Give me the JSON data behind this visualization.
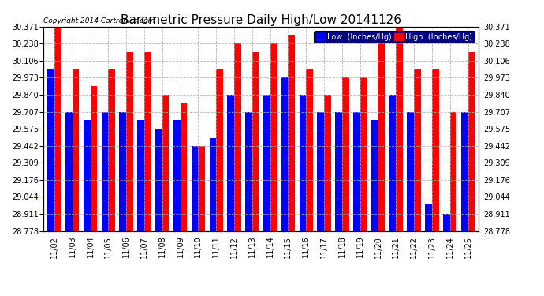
{
  "title": "Barometric Pressure Daily High/Low 20141126",
  "copyright": "Copyright 2014 Cartronics.com",
  "dates": [
    "11/02",
    "11/03",
    "11/04",
    "11/05",
    "11/06",
    "11/07",
    "11/08",
    "11/09",
    "11/10",
    "11/11",
    "11/12",
    "11/13",
    "11/14",
    "11/15",
    "11/16",
    "11/17",
    "11/18",
    "11/19",
    "11/20",
    "11/21",
    "11/22",
    "11/23",
    "11/24",
    "11/25"
  ],
  "low_values": [
    30.04,
    29.707,
    29.64,
    29.707,
    29.707,
    29.64,
    29.575,
    29.64,
    29.442,
    29.5,
    29.84,
    29.707,
    29.84,
    29.973,
    29.84,
    29.707,
    29.707,
    29.707,
    29.64,
    29.84,
    29.707,
    28.985,
    28.911,
    29.707
  ],
  "high_values": [
    30.371,
    30.04,
    29.907,
    30.04,
    30.172,
    30.172,
    29.84,
    29.773,
    29.442,
    30.04,
    30.238,
    30.172,
    30.238,
    30.305,
    30.04,
    29.84,
    29.973,
    29.973,
    30.305,
    30.371,
    30.04,
    30.04,
    29.707,
    30.172
  ],
  "ylim": [
    28.778,
    30.371
  ],
  "yticks": [
    28.778,
    28.911,
    29.044,
    29.176,
    29.309,
    29.442,
    29.575,
    29.707,
    29.84,
    29.973,
    30.106,
    30.238,
    30.371
  ],
  "low_color": "#0000ff",
  "high_color": "#ff0000",
  "bg_color": "#ffffff",
  "grid_color": "#aaaaaa",
  "bar_width": 0.38,
  "title_fontsize": 11,
  "tick_fontsize": 7,
  "legend_low_label": "Low  (Inches/Hg)",
  "legend_high_label": "High  (Inches/Hg)"
}
